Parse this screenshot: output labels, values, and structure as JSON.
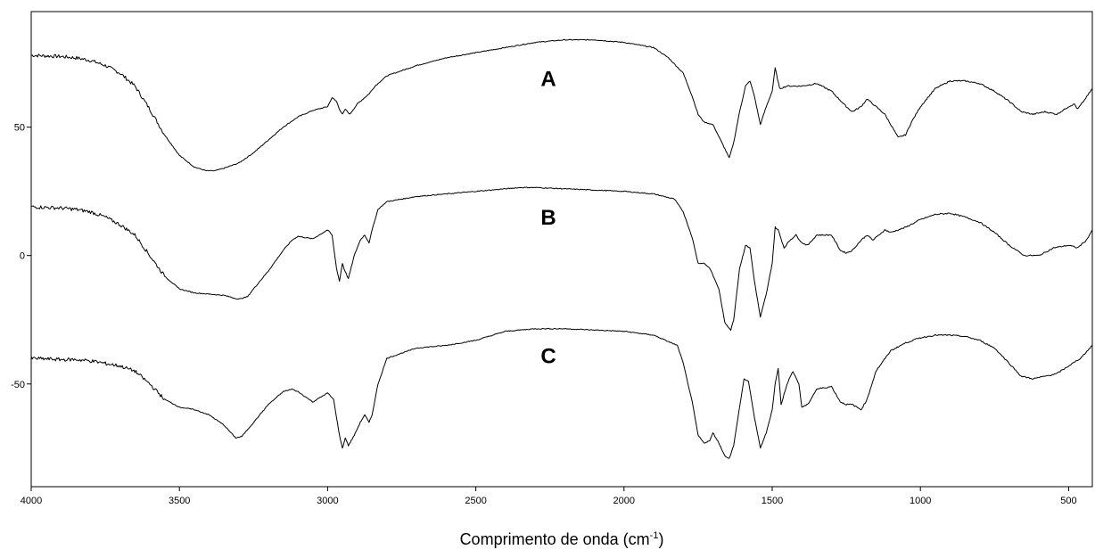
{
  "chart_data": {
    "type": "line",
    "title": "",
    "xlabel": "Comprimento de onda (cm",
    "xlabel_sup": "-1",
    "xlabel_end": ")",
    "ylabel": "",
    "xlim": [
      4000,
      420
    ],
    "ylim": [
      -90,
      95
    ],
    "x_ticks": [
      4000,
      3500,
      3000,
      2500,
      2000,
      1500,
      1000,
      500
    ],
    "y_ticks": [
      -50,
      0,
      50
    ],
    "grid": false,
    "series": [
      {
        "name": "A",
        "label_x": 2255,
        "label_y": 66,
        "points": [
          [
            4000,
            78
          ],
          [
            3900,
            77.5
          ],
          [
            3850,
            77
          ],
          [
            3800,
            76
          ],
          [
            3750,
            74
          ],
          [
            3700,
            71
          ],
          [
            3650,
            66
          ],
          [
            3600,
            57
          ],
          [
            3550,
            47
          ],
          [
            3500,
            39
          ],
          [
            3450,
            34.5
          ],
          [
            3410,
            33
          ],
          [
            3380,
            33
          ],
          [
            3350,
            34
          ],
          [
            3300,
            36
          ],
          [
            3250,
            40
          ],
          [
            3200,
            45
          ],
          [
            3150,
            50
          ],
          [
            3100,
            54
          ],
          [
            3050,
            56.5
          ],
          [
            3000,
            58
          ],
          [
            2985,
            61.5
          ],
          [
            2970,
            60
          ],
          [
            2960,
            57
          ],
          [
            2950,
            55
          ],
          [
            2940,
            57
          ],
          [
            2925,
            55
          ],
          [
            2900,
            59
          ],
          [
            2880,
            61
          ],
          [
            2860,
            63
          ],
          [
            2840,
            66
          ],
          [
            2800,
            70
          ],
          [
            2700,
            74
          ],
          [
            2600,
            77
          ],
          [
            2500,
            79
          ],
          [
            2400,
            81
          ],
          [
            2300,
            83
          ],
          [
            2200,
            84
          ],
          [
            2100,
            84
          ],
          [
            2000,
            83
          ],
          [
            1900,
            81
          ],
          [
            1850,
            77
          ],
          [
            1800,
            71
          ],
          [
            1770,
            62
          ],
          [
            1750,
            55
          ],
          [
            1730,
            52
          ],
          [
            1700,
            51
          ],
          [
            1670,
            44
          ],
          [
            1645,
            38
          ],
          [
            1630,
            44
          ],
          [
            1610,
            56
          ],
          [
            1590,
            66
          ],
          [
            1575,
            68
          ],
          [
            1560,
            62
          ],
          [
            1540,
            51
          ],
          [
            1520,
            58
          ],
          [
            1500,
            64
          ],
          [
            1490,
            73
          ],
          [
            1475,
            65
          ],
          [
            1450,
            66
          ],
          [
            1400,
            66
          ],
          [
            1350,
            67
          ],
          [
            1300,
            64
          ],
          [
            1250,
            58
          ],
          [
            1230,
            56
          ],
          [
            1200,
            58
          ],
          [
            1180,
            61
          ],
          [
            1160,
            59
          ],
          [
            1120,
            55
          ],
          [
            1090,
            49
          ],
          [
            1075,
            46
          ],
          [
            1050,
            47
          ],
          [
            1030,
            52
          ],
          [
            1000,
            58
          ],
          [
            950,
            65
          ],
          [
            900,
            68
          ],
          [
            850,
            68
          ],
          [
            800,
            67
          ],
          [
            750,
            64
          ],
          [
            700,
            60
          ],
          [
            660,
            56
          ],
          [
            620,
            55
          ],
          [
            580,
            56
          ],
          [
            540,
            55
          ],
          [
            500,
            58
          ],
          [
            480,
            59
          ],
          [
            470,
            57
          ],
          [
            450,
            60
          ],
          [
            420,
            65
          ]
        ]
      },
      {
        "name": "B",
        "label_x": 2255,
        "label_y": 12,
        "points": [
          [
            4000,
            19
          ],
          [
            3900,
            18.5
          ],
          [
            3850,
            18
          ],
          [
            3800,
            17
          ],
          [
            3750,
            15
          ],
          [
            3700,
            12
          ],
          [
            3650,
            8
          ],
          [
            3600,
            0
          ],
          [
            3550,
            -8
          ],
          [
            3500,
            -13
          ],
          [
            3450,
            -14.5
          ],
          [
            3400,
            -15
          ],
          [
            3350,
            -15.5
          ],
          [
            3300,
            -17
          ],
          [
            3270,
            -16
          ],
          [
            3250,
            -13
          ],
          [
            3200,
            -6
          ],
          [
            3150,
            2
          ],
          [
            3120,
            6
          ],
          [
            3100,
            7.5
          ],
          [
            3050,
            6.5
          ],
          [
            3000,
            10
          ],
          [
            2985,
            8
          ],
          [
            2970,
            -5
          ],
          [
            2960,
            -10
          ],
          [
            2950,
            -3
          ],
          [
            2945,
            -5
          ],
          [
            2930,
            -9
          ],
          [
            2910,
            0
          ],
          [
            2890,
            6
          ],
          [
            2875,
            8
          ],
          [
            2860,
            5
          ],
          [
            2850,
            10
          ],
          [
            2830,
            18
          ],
          [
            2800,
            21
          ],
          [
            2700,
            23
          ],
          [
            2600,
            24
          ],
          [
            2500,
            25
          ],
          [
            2400,
            26
          ],
          [
            2350,
            26.5
          ],
          [
            2300,
            26.5
          ],
          [
            2200,
            26
          ],
          [
            2100,
            25.5
          ],
          [
            2000,
            25
          ],
          [
            1900,
            24
          ],
          [
            1830,
            22
          ],
          [
            1800,
            17
          ],
          [
            1770,
            7
          ],
          [
            1750,
            -3
          ],
          [
            1730,
            -3
          ],
          [
            1710,
            -5
          ],
          [
            1680,
            -13
          ],
          [
            1660,
            -26
          ],
          [
            1640,
            -29
          ],
          [
            1630,
            -25
          ],
          [
            1610,
            -5
          ],
          [
            1590,
            4
          ],
          [
            1575,
            3
          ],
          [
            1560,
            -10
          ],
          [
            1540,
            -24
          ],
          [
            1520,
            -15
          ],
          [
            1500,
            -3
          ],
          [
            1490,
            11
          ],
          [
            1480,
            10
          ],
          [
            1460,
            3
          ],
          [
            1440,
            6
          ],
          [
            1420,
            8
          ],
          [
            1400,
            5
          ],
          [
            1380,
            4
          ],
          [
            1350,
            8
          ],
          [
            1300,
            8
          ],
          [
            1270,
            2
          ],
          [
            1250,
            1
          ],
          [
            1230,
            2
          ],
          [
            1200,
            6
          ],
          [
            1180,
            8
          ],
          [
            1160,
            6
          ],
          [
            1120,
            10
          ],
          [
            1100,
            9
          ],
          [
            1050,
            11
          ],
          [
            1000,
            14
          ],
          [
            950,
            16
          ],
          [
            900,
            16.5
          ],
          [
            850,
            15
          ],
          [
            800,
            13
          ],
          [
            750,
            9
          ],
          [
            700,
            4
          ],
          [
            650,
            0
          ],
          [
            600,
            0
          ],
          [
            550,
            3
          ],
          [
            500,
            4
          ],
          [
            470,
            3
          ],
          [
            440,
            6
          ],
          [
            420,
            10
          ]
        ]
      },
      {
        "name": "C",
        "label_x": 2255,
        "label_y": -42,
        "points": [
          [
            4000,
            -40
          ],
          [
            3900,
            -40.5
          ],
          [
            3850,
            -40.5
          ],
          [
            3800,
            -41
          ],
          [
            3750,
            -42
          ],
          [
            3700,
            -43
          ],
          [
            3650,
            -45
          ],
          [
            3600,
            -50
          ],
          [
            3550,
            -56
          ],
          [
            3500,
            -59
          ],
          [
            3450,
            -60
          ],
          [
            3400,
            -62
          ],
          [
            3350,
            -66
          ],
          [
            3310,
            -71
          ],
          [
            3290,
            -70.5
          ],
          [
            3250,
            -65
          ],
          [
            3200,
            -58
          ],
          [
            3150,
            -53
          ],
          [
            3120,
            -52
          ],
          [
            3100,
            -53
          ],
          [
            3050,
            -57
          ],
          [
            3000,
            -53.5
          ],
          [
            2980,
            -56
          ],
          [
            2960,
            -70
          ],
          [
            2950,
            -75
          ],
          [
            2940,
            -71
          ],
          [
            2930,
            -74
          ],
          [
            2910,
            -70
          ],
          [
            2890,
            -65
          ],
          [
            2875,
            -62
          ],
          [
            2860,
            -65
          ],
          [
            2850,
            -62
          ],
          [
            2830,
            -50
          ],
          [
            2800,
            -40
          ],
          [
            2700,
            -36
          ],
          [
            2600,
            -35
          ],
          [
            2500,
            -33
          ],
          [
            2400,
            -29.5
          ],
          [
            2300,
            -28.5
          ],
          [
            2200,
            -28.5
          ],
          [
            2100,
            -29
          ],
          [
            2000,
            -29.5
          ],
          [
            1900,
            -31
          ],
          [
            1820,
            -35
          ],
          [
            1800,
            -42
          ],
          [
            1770,
            -57
          ],
          [
            1750,
            -70
          ],
          [
            1730,
            -73
          ],
          [
            1710,
            -72
          ],
          [
            1700,
            -69
          ],
          [
            1680,
            -73
          ],
          [
            1660,
            -78
          ],
          [
            1645,
            -79
          ],
          [
            1630,
            -74
          ],
          [
            1610,
            -59
          ],
          [
            1595,
            -48
          ],
          [
            1580,
            -49
          ],
          [
            1560,
            -63
          ],
          [
            1540,
            -75
          ],
          [
            1520,
            -69
          ],
          [
            1500,
            -60
          ],
          [
            1490,
            -50
          ],
          [
            1480,
            -44
          ],
          [
            1470,
            -58
          ],
          [
            1450,
            -50
          ],
          [
            1430,
            -45
          ],
          [
            1410,
            -50
          ],
          [
            1400,
            -59
          ],
          [
            1380,
            -58
          ],
          [
            1350,
            -52
          ],
          [
            1300,
            -51
          ],
          [
            1270,
            -57
          ],
          [
            1250,
            -58
          ],
          [
            1230,
            -58
          ],
          [
            1200,
            -60
          ],
          [
            1180,
            -56
          ],
          [
            1150,
            -45
          ],
          [
            1100,
            -37
          ],
          [
            1050,
            -34
          ],
          [
            1000,
            -32
          ],
          [
            950,
            -31
          ],
          [
            900,
            -31
          ],
          [
            850,
            -31.5
          ],
          [
            800,
            -33
          ],
          [
            750,
            -36
          ],
          [
            700,
            -42
          ],
          [
            660,
            -47
          ],
          [
            620,
            -48
          ],
          [
            580,
            -47
          ],
          [
            540,
            -46
          ],
          [
            500,
            -43
          ],
          [
            460,
            -40
          ],
          [
            420,
            -35
          ]
        ]
      }
    ]
  }
}
